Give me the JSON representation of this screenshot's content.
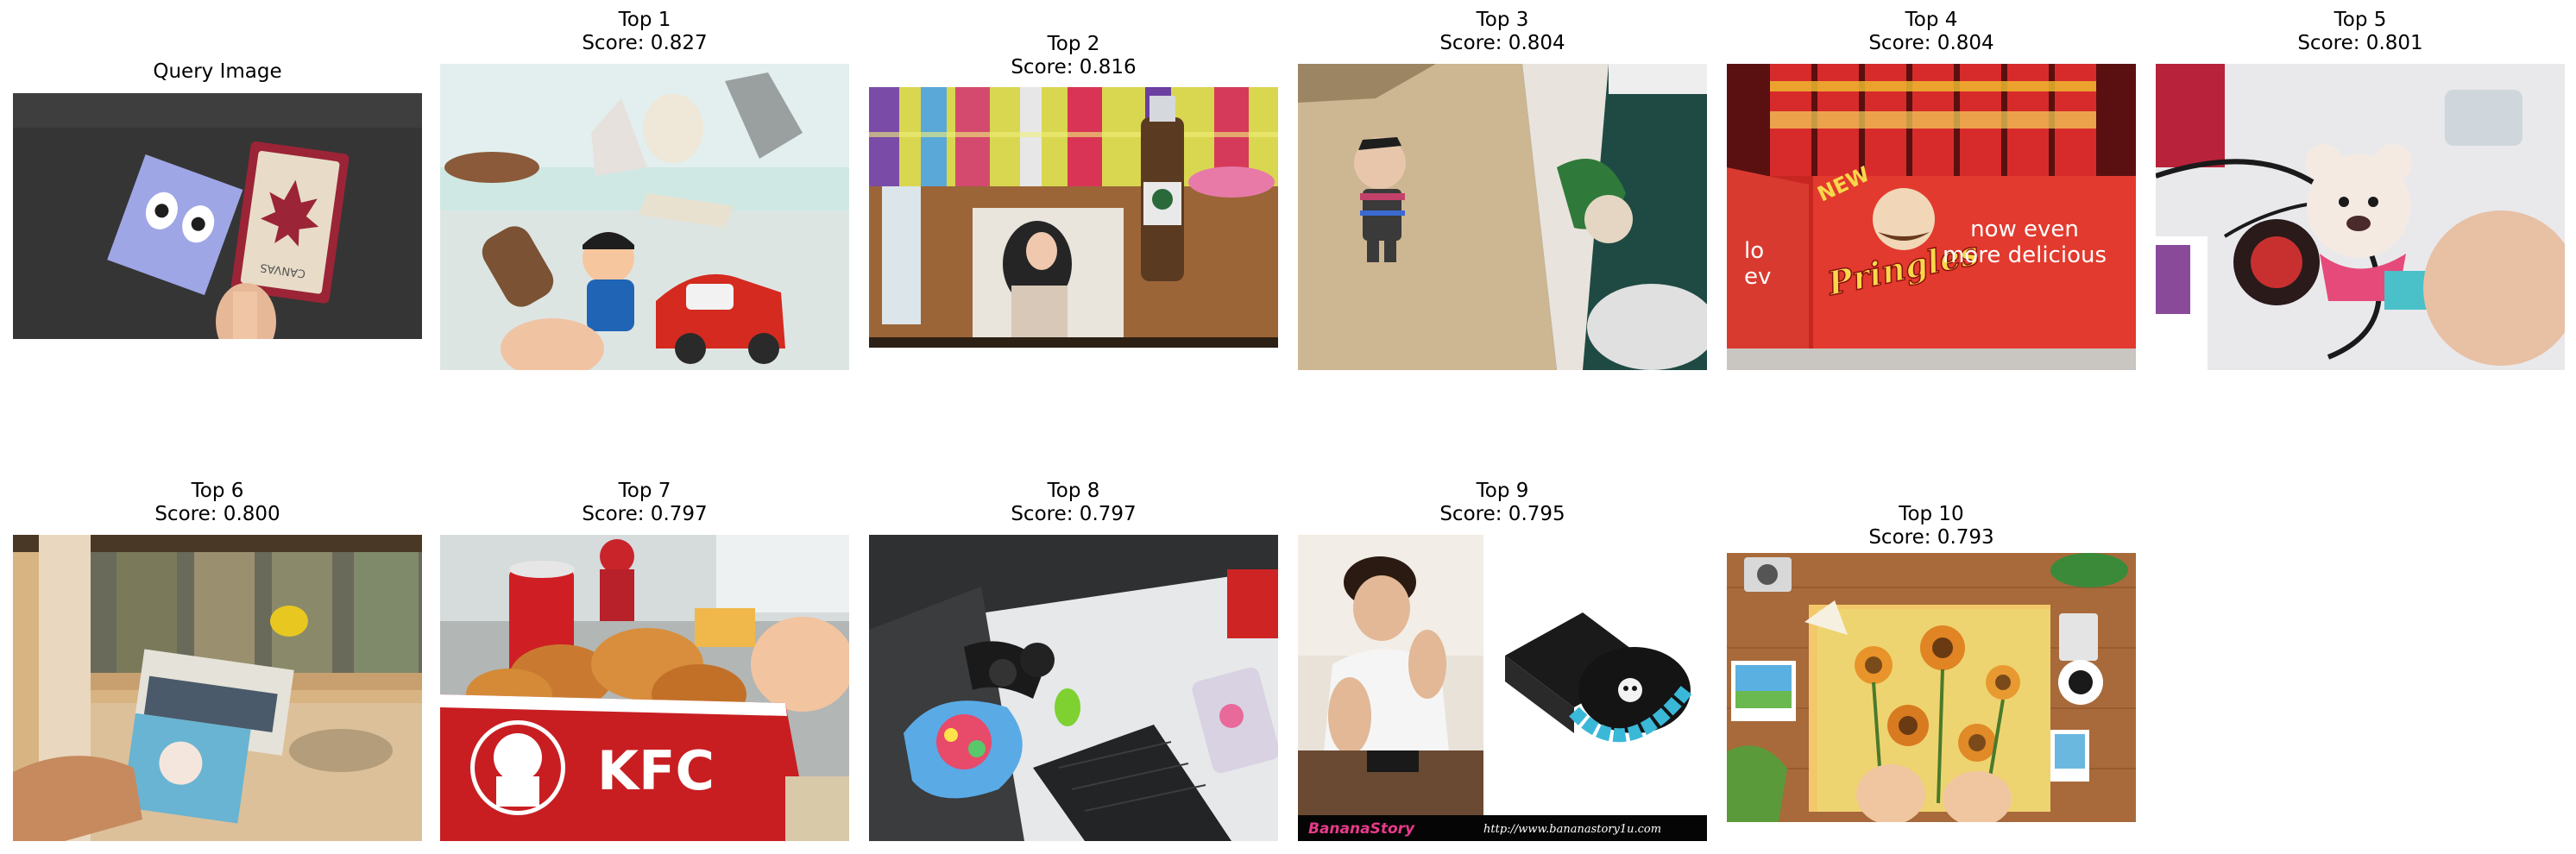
{
  "query": {
    "title": "Query Image"
  },
  "results": [
    {
      "rank_label": "Top 1",
      "score_label": "Score: 0.827",
      "score": 0.827
    },
    {
      "rank_label": "Top 2",
      "score_label": "Score: 0.816",
      "score": 0.816
    },
    {
      "rank_label": "Top 3",
      "score_label": "Score: 0.804",
      "score": 0.804
    },
    {
      "rank_label": "Top 4",
      "score_label": "Score: 0.804",
      "score": 0.804
    },
    {
      "rank_label": "Top 5",
      "score_label": "Score: 0.801",
      "score": 0.801
    },
    {
      "rank_label": "Top 6",
      "score_label": "Score: 0.800",
      "score": 0.8
    },
    {
      "rank_label": "Top 7",
      "score_label": "Score: 0.797",
      "score": 0.797
    },
    {
      "rank_label": "Top 8",
      "score_label": "Score: 0.797",
      "score": 0.797
    },
    {
      "rank_label": "Top 9",
      "score_label": "Score: 0.795",
      "score": 0.795
    },
    {
      "rank_label": "Top 10",
      "score_label": "Score: 0.793",
      "score": 0.793
    }
  ],
  "image_text": {
    "query_card": "CANVAS",
    "top4_brand": "Pringles",
    "top4_slogan_1": "now even",
    "top4_slogan_2": "more delicious",
    "top4_new": "NEW",
    "top4_left_1": "lo",
    "top4_left_2": "ev",
    "top7_brand": "KFC",
    "top9_brand": "BananaStory",
    "top9_url": "http://www.bananastory1u.com"
  }
}
